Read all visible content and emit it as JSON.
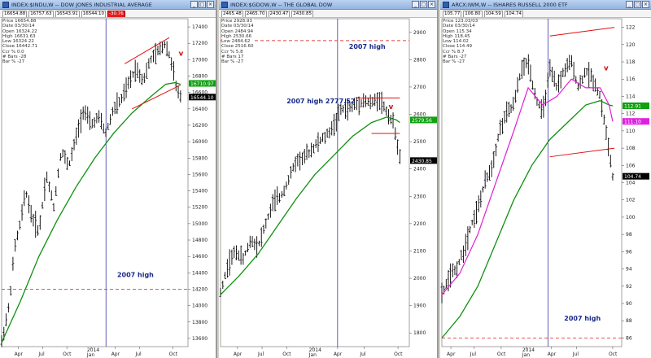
{
  "panels": [
    {
      "title": "INDEX:$INDU,W -- DOW JONES INDUSTRIAL AVERAGE",
      "quote": [
        "16654.88",
        "16757.63",
        "16543.91",
        "16544.10"
      ],
      "quote_red": "-30.76",
      "info": [
        "Price 16654.88",
        "Date 03/30/14",
        "Open 16324.22",
        "High 16631.63",
        "Low 16324.22",
        "Close 16442.71",
        "Ccr % 0.0",
        "# Bars -28",
        "Bar % -27"
      ],
      "price_tags": [
        {
          "label": "16710.97",
          "color": "#10a010"
        },
        {
          "label": "16544.10",
          "color": "#000000"
        }
      ],
      "annotations": [
        {
          "text": "2007 high"
        }
      ],
      "v_marker": "v"
    },
    {
      "title": "INDEX:$GDOW,W -- THE GLOBAL DOW",
      "quote": [
        "2465.48",
        "2465.70",
        "2430.47",
        "2430.85"
      ],
      "quote_red": "",
      "info": [
        "Price 2928.93",
        "Date 03/30/14",
        "Open 2484.94",
        "High 2530.66",
        "Low 2484.62",
        "Close 2516.60",
        "Ccr % 5.8",
        "# Bars 17",
        "Bar % -27"
      ],
      "price_tags": [
        {
          "label": "2579.56",
          "color": "#10a010"
        },
        {
          "label": "2430.85",
          "color": "#000000"
        }
      ],
      "annotations": [
        {
          "text": "2007 high"
        },
        {
          "text": "2007 high 2777.52"
        }
      ],
      "v_marker": "v"
    },
    {
      "title": "ARCX:IWM,W -- ISHARES RUSSELL 2000 ETF",
      "quote": [
        "105.77",
        "106.80",
        "104.59",
        "104.74"
      ],
      "quote_red": "",
      "info": [
        "Price 123.03/03",
        "Date 03/30/14",
        "Open 115.34",
        "High 118.45",
        "Low 114.02",
        "Close 114.49",
        "Ccr % 8.7",
        "# Bars -27",
        "Bar % -27"
      ],
      "price_tags": [
        {
          "label": "112.91",
          "color": "#10a010"
        },
        {
          "label": "111.10",
          "color": "#e020e0"
        },
        {
          "label": "104.74",
          "color": "#000000"
        }
      ],
      "annotations": [
        {
          "text": "2007 high"
        }
      ],
      "v_marker": "v"
    }
  ],
  "chart_data": [
    {
      "type": "ohlc",
      "title": "INDEX:$INDU,W -- DOW JONES INDUSTRIAL AVERAGE",
      "ylim": [
        13500,
        17500
      ],
      "y_ticks": [
        13600,
        13800,
        14000,
        14200,
        14400,
        14600,
        14800,
        15000,
        15200,
        15400,
        15600,
        15800,
        16000,
        16200,
        16400,
        16600,
        16800,
        17000,
        17200,
        17400
      ],
      "x_ticks": [
        "Apr",
        "Jul",
        "Oct",
        "2014 Jan",
        "Apr",
        "Jul",
        "Oct"
      ],
      "x_tick_pos": [
        0.09,
        0.22,
        0.35,
        0.48,
        0.61,
        0.74,
        0.92
      ],
      "price_path": [
        [
          0,
          13550
        ],
        [
          0.04,
          14000
        ],
        [
          0.07,
          14700
        ],
        [
          0.1,
          15000
        ],
        [
          0.13,
          15400
        ],
        [
          0.16,
          15100
        ],
        [
          0.2,
          14900
        ],
        [
          0.24,
          15600
        ],
        [
          0.28,
          15200
        ],
        [
          0.32,
          15900
        ],
        [
          0.36,
          15700
        ],
        [
          0.4,
          16050
        ],
        [
          0.44,
          16400
        ],
        [
          0.48,
          16200
        ],
        [
          0.52,
          16300
        ],
        [
          0.56,
          16100
        ],
        [
          0.6,
          16400
        ],
        [
          0.64,
          16500
        ],
        [
          0.68,
          16700
        ],
        [
          0.72,
          16900
        ],
        [
          0.76,
          16750
        ],
        [
          0.8,
          17000
        ],
        [
          0.84,
          17100
        ],
        [
          0.88,
          17200
        ],
        [
          0.92,
          16900
        ],
        [
          0.94,
          16600
        ],
        [
          0.96,
          16550
        ]
      ],
      "ma_path": [
        [
          0,
          13550
        ],
        [
          0.1,
          14050
        ],
        [
          0.2,
          14600
        ],
        [
          0.3,
          15050
        ],
        [
          0.4,
          15450
        ],
        [
          0.5,
          15800
        ],
        [
          0.6,
          16100
        ],
        [
          0.7,
          16350
        ],
        [
          0.8,
          16550
        ],
        [
          0.88,
          16700
        ],
        [
          0.93,
          16720
        ],
        [
          0.96,
          16700
        ]
      ],
      "wedge": [
        [
          [
            0.66,
            16950
          ],
          [
            0.9,
            17270
          ]
        ],
        [
          [
            0.7,
            16400
          ],
          [
            0.96,
            16690
          ]
        ]
      ],
      "ref_level": 14200,
      "vline": 0.56,
      "ann_pos": [
        [
          0.62,
          14350
        ]
      ],
      "v_pos": [
        0.95,
        17050
      ]
    },
    {
      "type": "ohlc",
      "title": "INDEX:$GDOW,W -- THE GLOBAL DOW",
      "ylim": [
        1750,
        2950
      ],
      "y_ticks": [
        1800,
        1900,
        2000,
        2100,
        2200,
        2300,
        2400,
        2500,
        2600,
        2700,
        2800,
        2900
      ],
      "x_ticks": [
        "Apr",
        "Jul",
        "Oct",
        "2014 Jan",
        "Apr",
        "Jul",
        "Oct"
      ],
      "x_tick_pos": [
        0.09,
        0.22,
        0.35,
        0.49,
        0.62,
        0.76,
        0.94
      ],
      "price_path": [
        [
          0,
          1950
        ],
        [
          0.04,
          2050
        ],
        [
          0.08,
          2100
        ],
        [
          0.12,
          2070
        ],
        [
          0.16,
          2140
        ],
        [
          0.2,
          2120
        ],
        [
          0.24,
          2200
        ],
        [
          0.28,
          2280
        ],
        [
          0.32,
          2300
        ],
        [
          0.36,
          2360
        ],
        [
          0.4,
          2430
        ],
        [
          0.44,
          2440
        ],
        [
          0.48,
          2470
        ],
        [
          0.52,
          2500
        ],
        [
          0.56,
          2520
        ],
        [
          0.6,
          2560
        ],
        [
          0.64,
          2620
        ],
        [
          0.68,
          2620
        ],
        [
          0.72,
          2640
        ],
        [
          0.76,
          2650
        ],
        [
          0.8,
          2640
        ],
        [
          0.84,
          2660
        ],
        [
          0.88,
          2610
        ],
        [
          0.92,
          2560
        ],
        [
          0.95,
          2440
        ]
      ],
      "ma_path": [
        [
          0,
          1940
        ],
        [
          0.1,
          2010
        ],
        [
          0.2,
          2090
        ],
        [
          0.3,
          2190
        ],
        [
          0.4,
          2290
        ],
        [
          0.5,
          2380
        ],
        [
          0.6,
          2450
        ],
        [
          0.7,
          2520
        ],
        [
          0.8,
          2570
        ],
        [
          0.88,
          2590
        ],
        [
          0.93,
          2580
        ],
        [
          0.95,
          2570
        ]
      ],
      "wedge": [
        [
          [
            0.72,
            2660
          ],
          [
            0.95,
            2660
          ]
        ],
        [
          [
            0.8,
            2530
          ],
          [
            0.95,
            2530
          ]
        ]
      ],
      "ref_level": 2870,
      "vline": 0.62,
      "ann_pos": [
        [
          0.68,
          2840
        ],
        [
          0.35,
          2640
        ]
      ],
      "v_pos": [
        0.89,
        2620
      ]
    },
    {
      "type": "ohlc",
      "title": "ARCX:IWM,W -- ISHARES RUSSELL 2000 ETF",
      "ylim": [
        85,
        123
      ],
      "y_ticks": [
        86,
        88,
        90,
        92,
        94,
        96,
        98,
        100,
        102,
        104,
        106,
        108,
        110,
        112,
        114,
        116,
        118,
        120,
        122
      ],
      "x_ticks": [
        "Apr",
        "Jul",
        "Oct",
        "2014 Jan",
        "Apr",
        "Jul",
        "Oct"
      ],
      "x_tick_pos": [
        0.05,
        0.18,
        0.33,
        0.47,
        0.61,
        0.75,
        0.95
      ],
      "price_path": [
        [
          0,
          91
        ],
        [
          0.04,
          93
        ],
        [
          0.08,
          94
        ],
        [
          0.12,
          96
        ],
        [
          0.16,
          99
        ],
        [
          0.2,
          101
        ],
        [
          0.24,
          104
        ],
        [
          0.28,
          106
        ],
        [
          0.32,
          110
        ],
        [
          0.36,
          112
        ],
        [
          0.4,
          113
        ],
        [
          0.44,
          117
        ],
        [
          0.48,
          118
        ],
        [
          0.52,
          114
        ],
        [
          0.56,
          112
        ],
        [
          0.6,
          117
        ],
        [
          0.64,
          115
        ],
        [
          0.68,
          117
        ],
        [
          0.72,
          118
        ],
        [
          0.76,
          115
        ],
        [
          0.8,
          117
        ],
        [
          0.84,
          116
        ],
        [
          0.88,
          114
        ],
        [
          0.92,
          109
        ],
        [
          0.95,
          104.7
        ]
      ],
      "ma_path": [
        [
          0,
          86
        ],
        [
          0.1,
          88.5
        ],
        [
          0.2,
          92
        ],
        [
          0.3,
          97
        ],
        [
          0.4,
          102
        ],
        [
          0.5,
          106
        ],
        [
          0.6,
          109
        ],
        [
          0.7,
          111
        ],
        [
          0.8,
          113
        ],
        [
          0.88,
          113.5
        ],
        [
          0.93,
          113
        ],
        [
          0.95,
          112.9
        ]
      ],
      "ma2_path": [
        [
          0,
          91
        ],
        [
          0.1,
          93.5
        ],
        [
          0.2,
          98
        ],
        [
          0.3,
          104
        ],
        [
          0.4,
          110
        ],
        [
          0.48,
          115
        ],
        [
          0.56,
          113
        ],
        [
          0.64,
          114
        ],
        [
          0.72,
          116
        ],
        [
          0.8,
          115
        ],
        [
          0.88,
          115
        ],
        [
          0.93,
          113
        ],
        [
          0.95,
          111.1
        ]
      ],
      "wedge": [
        [
          [
            0.6,
            121
          ],
          [
            0.96,
            122
          ]
        ],
        [
          [
            0.6,
            107
          ],
          [
            0.96,
            108
          ]
        ]
      ],
      "ref_level": 86,
      "vline": 0.59,
      "ann_pos": [
        [
          0.68,
          88
        ]
      ],
      "v_pos": [
        0.9,
        117
      ]
    }
  ]
}
